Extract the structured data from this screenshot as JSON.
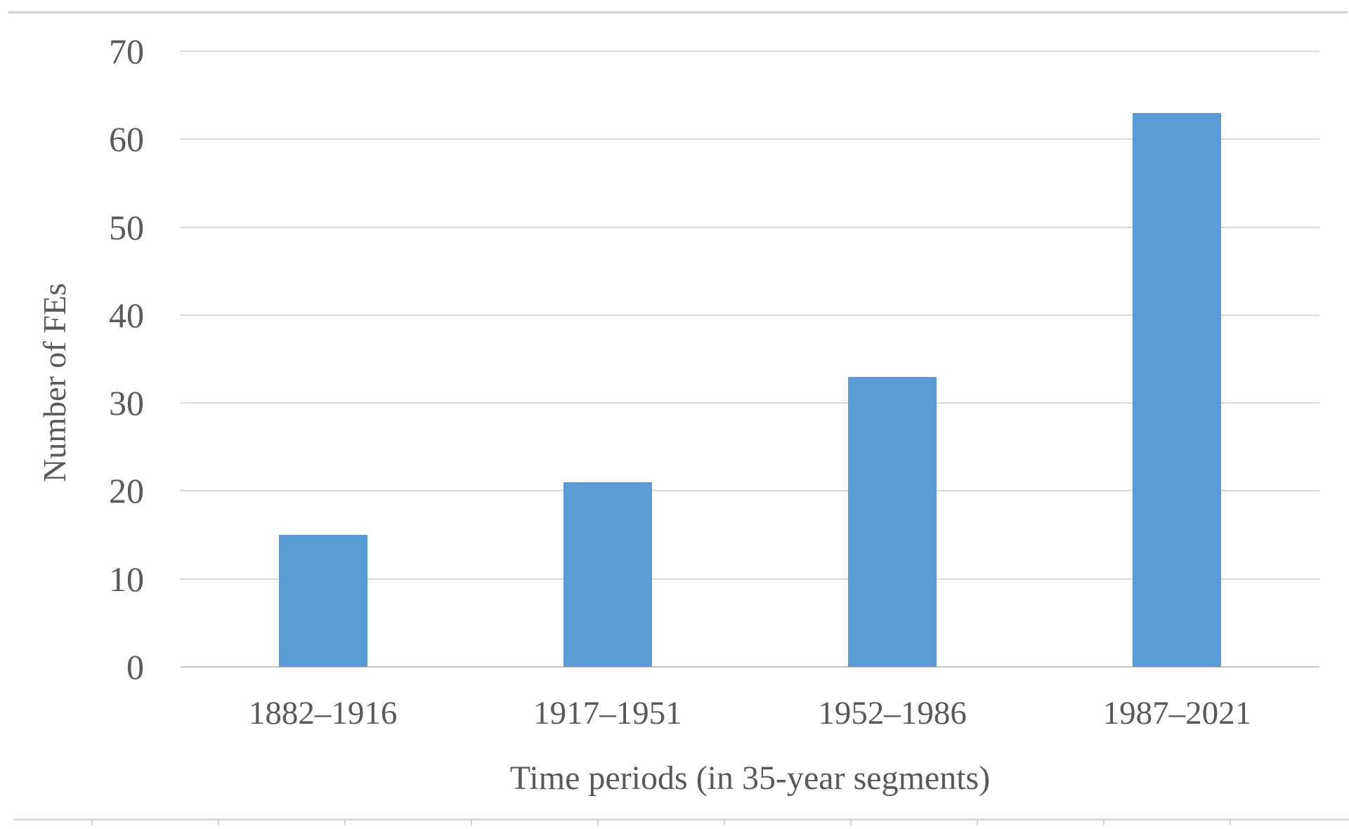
{
  "chart_data": {
    "type": "bar",
    "categories": [
      "1882–1916",
      "1917–1951",
      "1952–1986",
      "1987–2021"
    ],
    "values": [
      15,
      21,
      33,
      63
    ],
    "title": "",
    "xlabel": "Time periods (in 35-year segments)",
    "ylabel": "Number of FEs",
    "ylim": [
      0,
      70
    ],
    "ytick_step": 10,
    "ytick_labels": [
      "0",
      "10",
      "20",
      "30",
      "40",
      "50",
      "60",
      "70"
    ],
    "grid": "horizontal gridlines on, no vertical axis line",
    "legend_position": "none",
    "colors": {
      "bar": "#5b9bd5",
      "gridline": "#d9d9d9",
      "axis_line": "#c6c6c6",
      "text": "#595959",
      "page_rule": "#d2d2d2"
    }
  }
}
